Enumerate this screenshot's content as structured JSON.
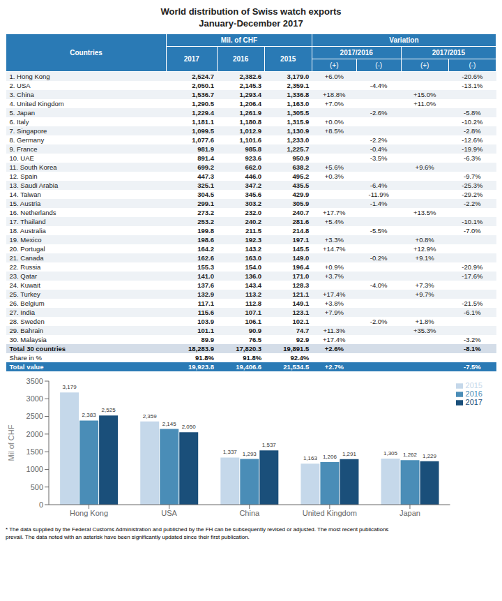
{
  "chart_data": [
    {
      "type": "table",
      "title": "World distribution of Swiss watch exports",
      "subtitle": "January-December 2017",
      "color": "#2A7AB5",
      "header_rows": [
        [
          "Countries",
          "Mil. of CHF",
          "Variation"
        ],
        [
          "2017",
          "2016",
          "2015",
          "2017/2016",
          "2017/2015"
        ],
        [
          "(+)",
          "(-)",
          "(+)",
          "(-)"
        ]
      ],
      "rows": [
        [
          "1. Hong Kong",
          "2,524.7",
          "2,382.6",
          "3,179.0",
          "+6.0%",
          null,
          null,
          "-20.6%"
        ],
        [
          "2. USA",
          "2,050.1",
          "2,145.3",
          "2,359.1",
          null,
          "-4.4%",
          null,
          "-13.1%"
        ],
        [
          "3. China",
          "1,536.7",
          "1,293.4",
          "1,336.8",
          "+18.8%",
          null,
          "+15.0%",
          null
        ],
        [
          "4. United Kingdom",
          "1,290.5",
          "1,206.4",
          "1,163.0",
          "+7.0%",
          null,
          "+11.0%",
          null
        ],
        [
          "5. Japan",
          "1,229.4",
          "1,261.9",
          "1,305.5",
          null,
          "-2.6%",
          null,
          "-5.8%"
        ],
        [
          "6. Italy",
          "1,181.1",
          "1,180.8",
          "1,315.9",
          "+0.0%",
          null,
          null,
          "-10.2%"
        ],
        [
          "7. Singapore",
          "1,099.5",
          "1,012.9",
          "1,130.9",
          "+8.5%",
          null,
          null,
          "-2.8%"
        ],
        [
          "8. Germany",
          "1,077.6",
          "1,101.6",
          "1,233.0",
          null,
          "-2.2%",
          null,
          "-12.6%"
        ],
        [
          "9. France",
          "981.9",
          "985.8",
          "1,225.7",
          null,
          "-0.4%",
          null,
          "-19.9%"
        ],
        [
          "10. UAE",
          "891.4",
          "923.6",
          "950.9",
          null,
          "-3.5%",
          null,
          "-6.3%"
        ],
        [
          "11. South Korea",
          "699.2",
          "662.0",
          "638.2",
          "+5.6%",
          null,
          "+9.6%",
          null
        ],
        [
          "12. Spain",
          "447.3",
          "446.0",
          "495.2",
          "+0.3%",
          null,
          null,
          "-9.7%"
        ],
        [
          "13. Saudi Arabia",
          "325.1",
          "347.2",
          "435.5",
          null,
          "-6.4%",
          null,
          "-25.3%"
        ],
        [
          "14. Taiwan",
          "304.5",
          "345.6",
          "429.9",
          null,
          "-11.9%",
          null,
          "-29.2%"
        ],
        [
          "15. Austria",
          "299.1",
          "303.2",
          "305.9",
          null,
          "-1.4%",
          null,
          "-2.2%"
        ],
        [
          "16. Netherlands",
          "273.2",
          "232.0",
          "240.7",
          "+17.7%",
          null,
          "+13.5%",
          null
        ],
        [
          "17. Thailand",
          "253.2",
          "240.2",
          "281.6",
          "+5.4%",
          null,
          null,
          "-10.1%"
        ],
        [
          "18. Australia",
          "199.8",
          "211.5",
          "214.8",
          null,
          "-5.5%",
          null,
          "-7.0%"
        ],
        [
          "19. Mexico",
          "198.6",
          "192.3",
          "197.1",
          "+3.3%",
          null,
          "+0.8%",
          null
        ],
        [
          "20. Portugal",
          "164.2",
          "143.2",
          "145.5",
          "+14.7%",
          null,
          "+12.9%",
          null
        ],
        [
          "21. Canada",
          "162.6",
          "163.0",
          "149.0",
          null,
          "-0.2%",
          "+9.1%",
          null
        ],
        [
          "22. Russia",
          "155.3",
          "154.0",
          "196.4",
          "+0.9%",
          null,
          null,
          "-20.9%"
        ],
        [
          "23. Qatar",
          "141.0",
          "136.0",
          "171.0",
          "+3.7%",
          null,
          null,
          "-17.6%"
        ],
        [
          "24. Kuwait",
          "137.6",
          "143.4",
          "128.3",
          null,
          "-4.0%",
          "+7.3%",
          null
        ],
        [
          "25. Turkey",
          "132.9",
          "113.2",
          "121.1",
          "+17.4%",
          null,
          "+9.7%",
          null
        ],
        [
          "26. Belgium",
          "117.1",
          "112.8",
          "149.1",
          "+3.8%",
          null,
          null,
          "-21.5%"
        ],
        [
          "27. India",
          "115.6",
          "107.1",
          "123.1",
          "+7.9%",
          null,
          null,
          "-6.1%"
        ],
        [
          "28. Sweden",
          "103.9",
          "106.1",
          "102.1",
          null,
          "-2.0%",
          "+1.8%",
          null
        ],
        [
          "29. Bahrain",
          "101.1",
          "90.9",
          "74.7",
          "+11.3%",
          null,
          "+35.3%",
          null
        ],
        [
          "30. Malaysia",
          "89.9",
          "76.5",
          "92.9",
          "+17.4%",
          null,
          null,
          "-3.2%"
        ]
      ],
      "footer_rows": [
        [
          "Total 30 countries",
          "18,283.9",
          "17,820.3",
          "19,891.5",
          "+2.6%",
          null,
          null,
          "-8.1%"
        ],
        [
          "Share in %",
          "91.8%",
          "91.8%",
          "92.4%",
          null,
          null,
          null,
          null
        ],
        [
          "Total value",
          "19,923.8",
          "19,406.6",
          "21,534.5",
          "+2.7%",
          null,
          null,
          "-7.5%"
        ]
      ]
    },
    {
      "type": "bar",
      "categories": [
        "Hong Kong",
        "USA",
        "China",
        "United Kingdom",
        "Japan"
      ],
      "series": [
        {
          "name": "2015",
          "color": "#C5D8EA",
          "values": [
            3179,
            2359,
            1337,
            1163,
            1305
          ],
          "value_labels": [
            "3,179",
            "2,359",
            "1,337",
            "1,163",
            "1,305"
          ]
        },
        {
          "name": "2016",
          "color": "#4A8DB7",
          "values": [
            2383,
            2145,
            1293,
            1206,
            1262
          ],
          "value_labels": [
            "2,383",
            "2,145",
            "1,293",
            "1,206",
            "1,262"
          ]
        },
        {
          "name": "2017",
          "color": "#1A4F7A",
          "values": [
            2525,
            2050,
            1537,
            1291,
            1229
          ],
          "value_labels": [
            "2,525",
            "2,050",
            "1,537",
            "1,291",
            "1,229"
          ]
        }
      ],
      "y_label": "Mil of CHF",
      "ylim": [
        0,
        3500
      ],
      "yticks": [
        0,
        500,
        1000,
        1500,
        2000,
        2500,
        3000,
        3500
      ],
      "data_labels": true,
      "legend": "upper right",
      "grid": false,
      "annotations": [
        "* The data supplied by the Federal Customs Administration and published by the FH can be subsequently revised or adjusted. The most recent publications",
        "prevail. The data noted with an asterisk have been significantly updated since their first publication."
      ]
    }
  ]
}
